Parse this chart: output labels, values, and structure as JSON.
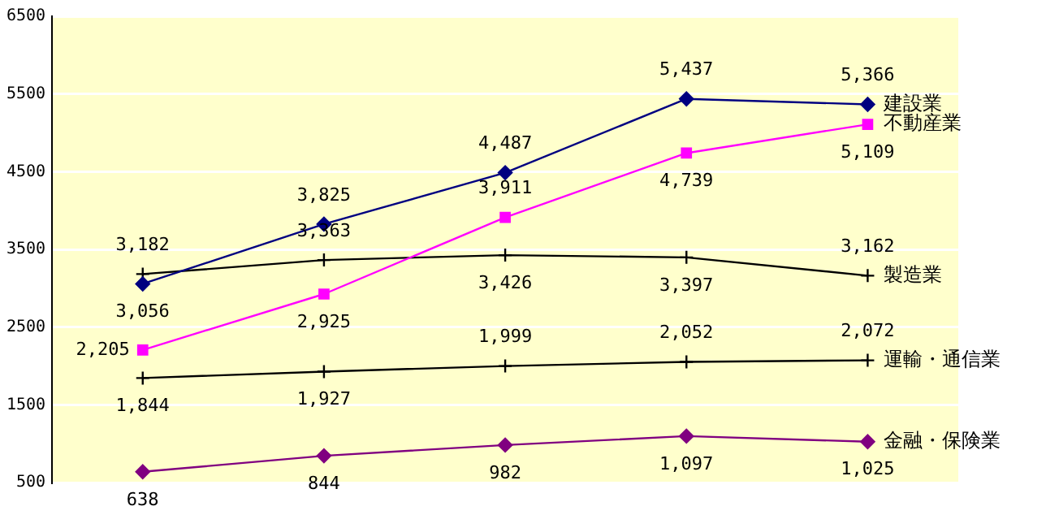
{
  "chart_data": {
    "type": "line",
    "categories": [
      null,
      null,
      null,
      null,
      null
    ],
    "series": [
      {
        "name": "建設業",
        "color": "#000080",
        "marker": "diamond",
        "values": [
          3056,
          3825,
          4487,
          5437,
          5366
        ],
        "value_labels": [
          "3,056",
          "3,825",
          "4,487",
          "5,437",
          "5,366"
        ]
      },
      {
        "name": "不動産業",
        "color": "#ff00ff",
        "marker": "square",
        "values": [
          2205,
          2925,
          3911,
          4739,
          5109
        ],
        "value_labels": [
          "2,205",
          "2,925",
          "3,911",
          "4,739",
          "5,109"
        ]
      },
      {
        "name": "製造業",
        "color": "#000000",
        "marker": "cross",
        "values": [
          3182,
          3363,
          3426,
          3397,
          3162
        ],
        "value_labels": [
          "3,182",
          "3,363",
          "3,426",
          "3,397",
          "3,162"
        ]
      },
      {
        "name": "運輸・通信業",
        "color": "#000000",
        "marker": "cross",
        "values": [
          1844,
          1927,
          1999,
          2052,
          2072
        ],
        "value_labels": [
          "1,844",
          "1,927",
          "1,999",
          "2,052",
          "2,072"
        ]
      },
      {
        "name": "金融・保険業",
        "color": "#800080",
        "marker": "diamond",
        "values": [
          638,
          844,
          982,
          1097,
          1025
        ],
        "value_labels": [
          "638",
          "844",
          "982",
          "1,097",
          "1,025"
        ]
      }
    ],
    "ylim": [
      500,
      6500
    ],
    "yticks": [
      500,
      1500,
      2500,
      3500,
      4500,
      5500,
      6500
    ],
    "grid": "y",
    "legend": false,
    "tick_labels": "y"
  }
}
